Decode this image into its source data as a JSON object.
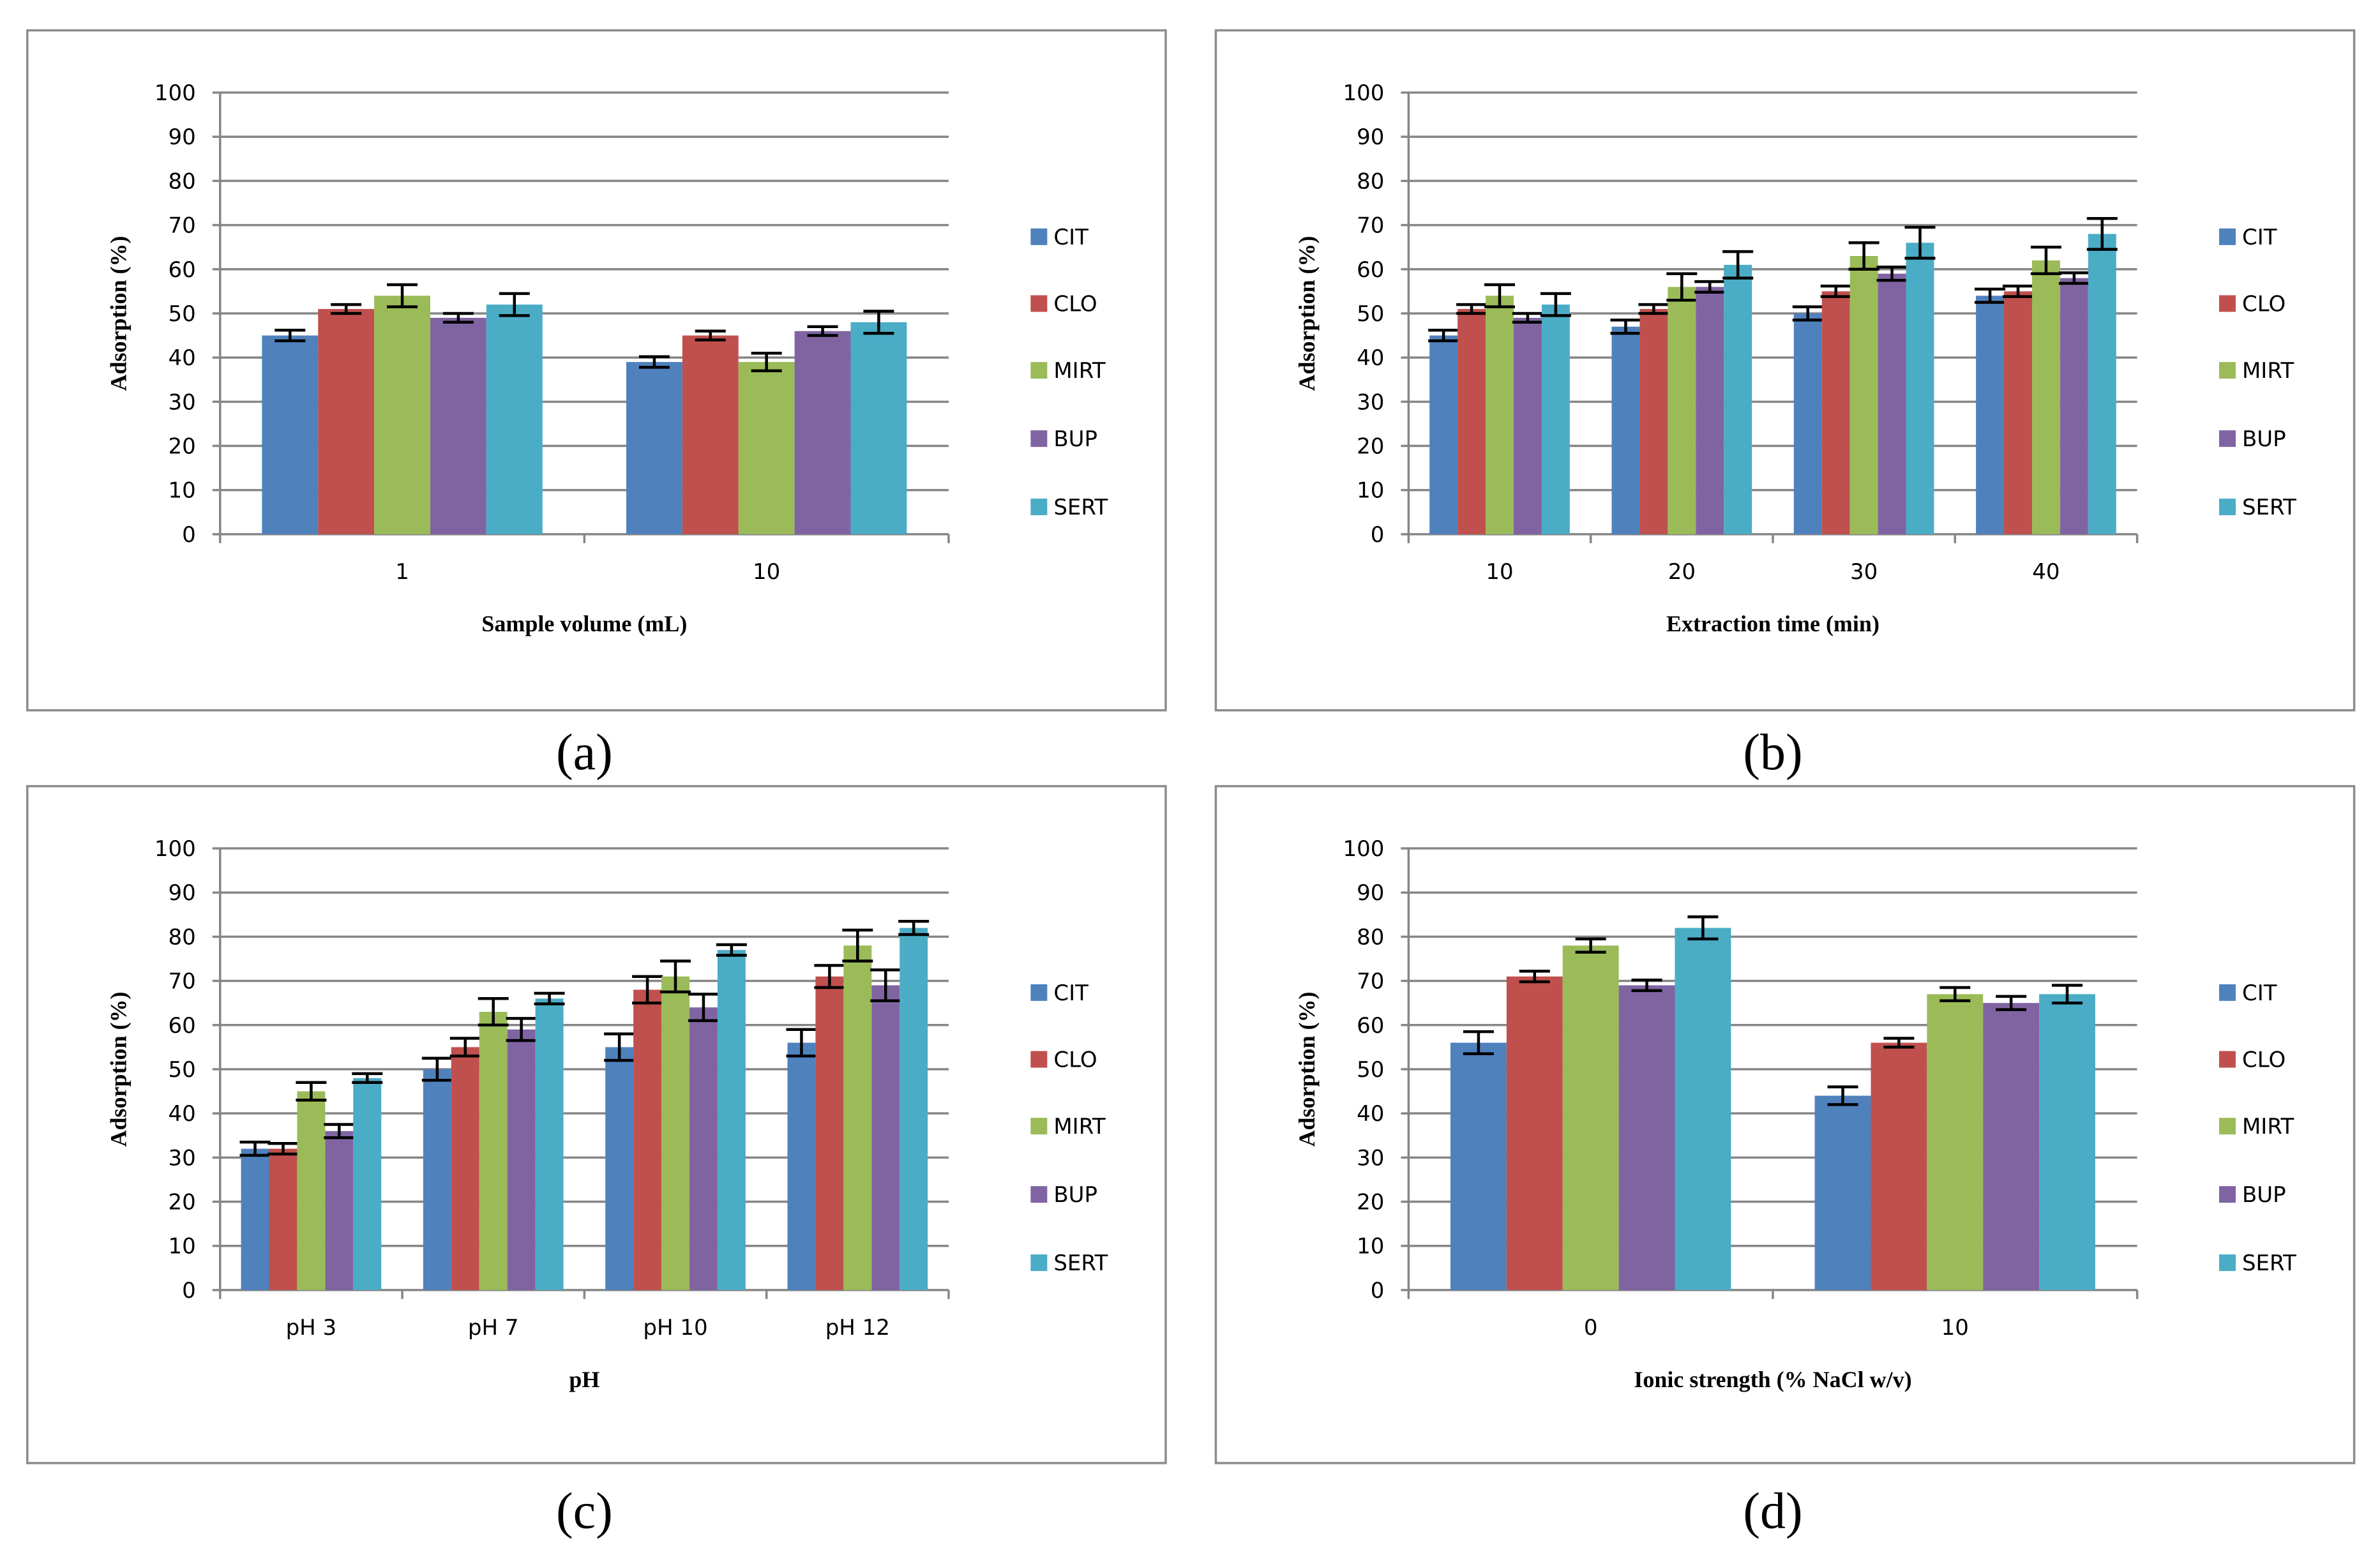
{
  "series_colors": {
    "CIT": "#4f81bd",
    "CLO": "#c0504d",
    "MIRT": "#9bbb59",
    "BUP": "#8064a2",
    "SERT": "#4bacc6"
  },
  "chart_data": [
    {
      "panel": "(a)",
      "type": "bar",
      "title": "",
      "xlabel": "Sample volume (mL)",
      "ylabel": "Adsorption (%)",
      "ylim": [
        0,
        100
      ],
      "yticks": [
        0,
        10,
        20,
        30,
        40,
        50,
        60,
        70,
        80,
        90,
        100
      ],
      "grid": true,
      "legend": "right",
      "categories": [
        "1",
        "10"
      ],
      "series": [
        {
          "name": "CIT",
          "values": [
            45,
            39
          ],
          "errors": [
            1.2,
            1.2
          ]
        },
        {
          "name": "CLO",
          "values": [
            51,
            45
          ],
          "errors": [
            1.0,
            1.0
          ]
        },
        {
          "name": "MIRT",
          "values": [
            54,
            39
          ],
          "errors": [
            2.5,
            2.0
          ]
        },
        {
          "name": "BUP",
          "values": [
            49,
            46
          ],
          "errors": [
            1.0,
            1.0
          ]
        },
        {
          "name": "SERT",
          "values": [
            52,
            48
          ],
          "errors": [
            2.5,
            2.5
          ]
        }
      ]
    },
    {
      "panel": "(b)",
      "type": "bar",
      "title": "",
      "xlabel": "Extraction time (min)",
      "ylabel": "Adsorption (%)",
      "ylim": [
        0,
        100
      ],
      "yticks": [
        0,
        10,
        20,
        30,
        40,
        50,
        60,
        70,
        80,
        90,
        100
      ],
      "grid": true,
      "legend": "right",
      "categories": [
        "10",
        "20",
        "30",
        "40"
      ],
      "series": [
        {
          "name": "CIT",
          "values": [
            45,
            47,
            50,
            54
          ],
          "errors": [
            1.2,
            1.5,
            1.5,
            1.5
          ]
        },
        {
          "name": "CLO",
          "values": [
            51,
            51,
            55,
            55
          ],
          "errors": [
            1.0,
            1.0,
            1.2,
            1.2
          ]
        },
        {
          "name": "MIRT",
          "values": [
            54,
            56,
            63,
            62
          ],
          "errors": [
            2.5,
            3.0,
            3.0,
            3.0
          ]
        },
        {
          "name": "BUP",
          "values": [
            49,
            56,
            59,
            58
          ],
          "errors": [
            1.0,
            1.2,
            1.5,
            1.2
          ]
        },
        {
          "name": "SERT",
          "values": [
            52,
            61,
            66,
            68
          ],
          "errors": [
            2.5,
            3.0,
            3.5,
            3.5
          ]
        }
      ]
    },
    {
      "panel": "(c)",
      "type": "bar",
      "title": "",
      "xlabel": "pH",
      "ylabel": "Adsorption (%)",
      "ylim": [
        0,
        100
      ],
      "yticks": [
        0,
        10,
        20,
        30,
        40,
        50,
        60,
        70,
        80,
        90,
        100
      ],
      "grid": true,
      "legend": "right",
      "categories": [
        "pH 3",
        "pH 7",
        "pH 10",
        "pH 12"
      ],
      "series": [
        {
          "name": "CIT",
          "values": [
            32,
            50,
            55,
            56
          ],
          "errors": [
            1.5,
            2.5,
            3.0,
            3.0
          ]
        },
        {
          "name": "CLO",
          "values": [
            32,
            55,
            68,
            71
          ],
          "errors": [
            1.2,
            2.0,
            3.0,
            2.5
          ]
        },
        {
          "name": "MIRT",
          "values": [
            45,
            63,
            71,
            78
          ],
          "errors": [
            2.0,
            3.0,
            3.5,
            3.5
          ]
        },
        {
          "name": "BUP",
          "values": [
            36,
            59,
            64,
            69
          ],
          "errors": [
            1.5,
            2.5,
            3.0,
            3.5
          ]
        },
        {
          "name": "SERT",
          "values": [
            48,
            66,
            77,
            82
          ],
          "errors": [
            1.0,
            1.2,
            1.2,
            1.5
          ]
        }
      ]
    },
    {
      "panel": "(d)",
      "type": "bar",
      "title": "",
      "xlabel": "Ionic strength (% NaCl w/v)",
      "ylabel": "Adsorption (%)",
      "ylim": [
        0,
        100
      ],
      "yticks": [
        0,
        10,
        20,
        30,
        40,
        50,
        60,
        70,
        80,
        90,
        100
      ],
      "grid": true,
      "legend": "right",
      "categories": [
        "0",
        "10"
      ],
      "series": [
        {
          "name": "CIT",
          "values": [
            56,
            44
          ],
          "errors": [
            2.5,
            2.0
          ]
        },
        {
          "name": "CLO",
          "values": [
            71,
            56
          ],
          "errors": [
            1.2,
            1.0
          ]
        },
        {
          "name": "MIRT",
          "values": [
            78,
            67
          ],
          "errors": [
            1.5,
            1.5
          ]
        },
        {
          "name": "BUP",
          "values": [
            69,
            65
          ],
          "errors": [
            1.2,
            1.5
          ]
        },
        {
          "name": "SERT",
          "values": [
            82,
            67
          ],
          "errors": [
            2.5,
            2.0
          ]
        }
      ]
    }
  ]
}
